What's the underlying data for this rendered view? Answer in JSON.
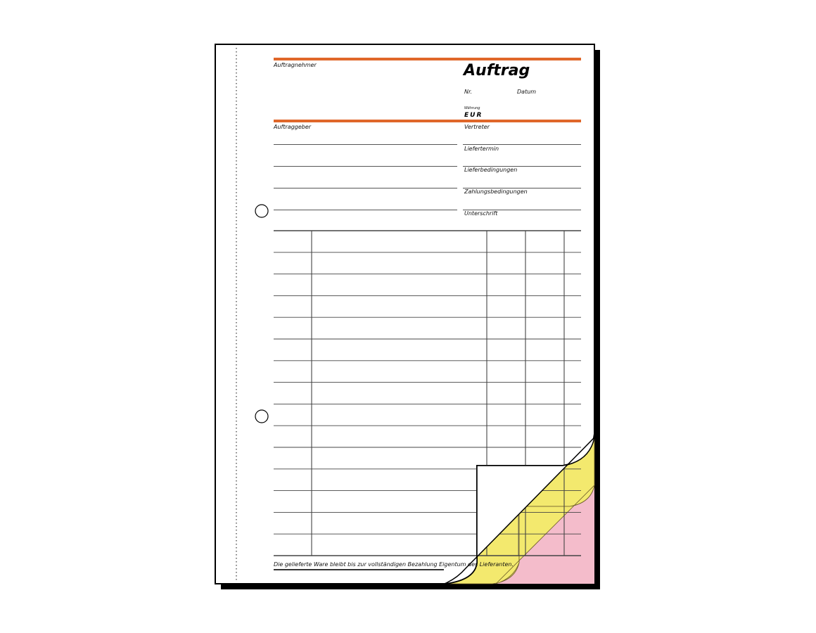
{
  "form": {
    "title": "Auftrag",
    "contractor_label": "Auftragnehmer",
    "number_label": "Nr.",
    "date_label": "Datum",
    "currency_label": "Währung",
    "currency_value": "EUR",
    "client_label": "Auftraggeber",
    "right_fields": [
      "Vertreter",
      "Liefertermin",
      "Lieferbedingungen",
      "Zahlungsbedingungen",
      "Unterschrift"
    ],
    "footer_note": "Die gelieferte Ware bleibt bis zur vollständigen Bezahlung Eigentum des Lieferanten."
  },
  "colors": {
    "accent_orange": "#e0672a",
    "copy_yellow": "#f3e96e",
    "copy_pink": "#f4bccb",
    "shadow": "#000000"
  }
}
